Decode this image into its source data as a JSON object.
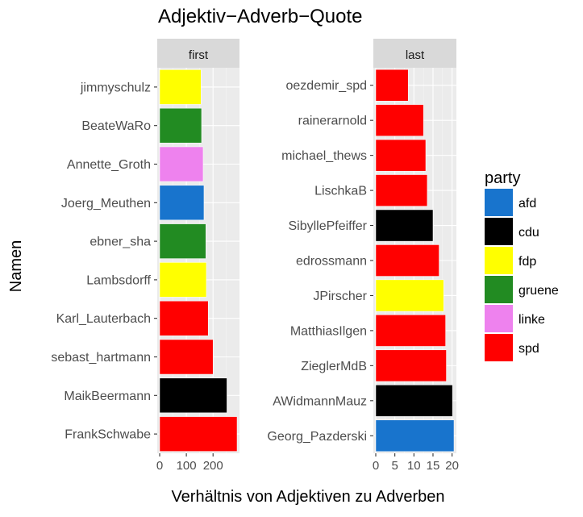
{
  "chart_data": {
    "type": "bar",
    "orientation": "horizontal",
    "title": "Adjektiv−Adverb−Quote",
    "xlabel": "Verhältnis von Adjektiven zu Adverben",
    "ylabel": "Namen",
    "grid": true,
    "legend": {
      "title": "party",
      "position": "right",
      "entries": [
        {
          "label": "afd",
          "color": "#1874CD"
        },
        {
          "label": "cdu",
          "color": "#000000"
        },
        {
          "label": "fdp",
          "color": "#FFFF00"
        },
        {
          "label": "gruene",
          "color": "#228B22"
        },
        {
          "label": "linke",
          "color": "#EE82EE"
        },
        {
          "label": "spd",
          "color": "#FF0000"
        }
      ]
    },
    "panels": [
      {
        "strip": "first",
        "xlim": [
          0,
          290
        ],
        "xticks": [
          0,
          100,
          200
        ],
        "xtick_labels": [
          "0",
          "100",
          "200"
        ],
        "categories": [
          "FrankSchwabe",
          "MaikBeermann",
          "sebast_hartmann",
          "Karl_Lauterbach",
          "Lambsdorff",
          "ebner_sha",
          "Joerg_Meuthen",
          "Annette_Groth",
          "BeateWaRo",
          "jimmyschulz"
        ],
        "values": [
          290,
          252,
          200,
          182,
          175,
          173,
          166,
          163,
          157,
          155
        ],
        "party": [
          "spd",
          "cdu",
          "spd",
          "spd",
          "fdp",
          "gruene",
          "afd",
          "linke",
          "gruene",
          "fdp"
        ]
      },
      {
        "strip": "last",
        "xlim": [
          0,
          20.5
        ],
        "xticks": [
          0,
          5,
          10,
          15,
          20
        ],
        "xtick_labels": [
          "0",
          "5",
          "10",
          "15",
          "20"
        ],
        "categories": [
          "Georg_Pazderski",
          "AWidmannMauz",
          "ZieglerMdB",
          "MatthiasIlgen",
          "JPirscher",
          "edrossmann",
          "SibyllePfeiffer",
          "LischkaB",
          "michael_thews",
          "rainerarnold",
          "oezdemir_spd"
        ],
        "values": [
          20.5,
          20.1,
          18.5,
          18.3,
          17.8,
          16.6,
          15.0,
          13.5,
          13.1,
          12.5,
          8.5
        ],
        "party": [
          "afd",
          "cdu",
          "spd",
          "spd",
          "fdp",
          "spd",
          "cdu",
          "spd",
          "spd",
          "spd",
          "spd"
        ]
      }
    ]
  }
}
